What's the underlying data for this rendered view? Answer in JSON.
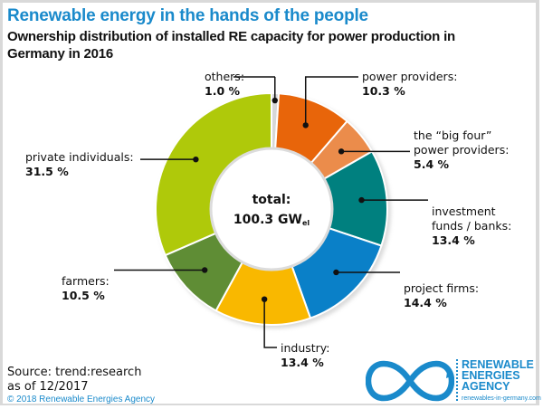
{
  "header": {
    "title": "Renewable energy in the hands of the people",
    "subtitle": "Ownership distribution of installed RE capacity for power production in Germany in 2016"
  },
  "chart_data": {
    "type": "pie",
    "variant": "donut",
    "title": "Renewable energy in the hands of the people",
    "subtitle": "Ownership distribution of installed RE capacity for power production in Germany in 2016",
    "unit": "%",
    "start": "12 o'clock",
    "direction": "clockwise",
    "center_label": {
      "line1": "total:",
      "value": "100.3 GW",
      "subscript": "el"
    },
    "slices": [
      {
        "key": "others",
        "label": "others:",
        "value": 1.0,
        "value_label": "1.0 %",
        "color": "#d7d7d7"
      },
      {
        "key": "power-providers",
        "label": "power providers:",
        "value": 10.3,
        "value_label": "10.3 %",
        "color": "#e8650a"
      },
      {
        "key": "big-four",
        "label": "the “big four” power providers:",
        "label_lines": [
          "the “big four”",
          "power providers:"
        ],
        "value": 5.4,
        "value_label": "5.4 %",
        "color": "#eb8c4b"
      },
      {
        "key": "investment-funds",
        "label": "investment funds / banks:",
        "label_lines": [
          "investment",
          "funds / banks:"
        ],
        "value": 13.4,
        "value_label": "13.4 %",
        "color": "#00807f"
      },
      {
        "key": "project-firms",
        "label": "project firms:",
        "value": 14.4,
        "value_label": "14.4 %",
        "color": "#0a80c8"
      },
      {
        "key": "industry",
        "label": "industry:",
        "value": 13.4,
        "value_label": "13.4 %",
        "color": "#f9b800"
      },
      {
        "key": "farmers",
        "label": "farmers:",
        "value": 10.5,
        "value_label": "10.5 %",
        "color": "#5f8d35"
      },
      {
        "key": "private-individuals",
        "label": "private individuals:",
        "value": 31.5,
        "value_label": "31.5 %",
        "color": "#afc90a"
      }
    ]
  },
  "footer": {
    "source_line1": "Source: trend:research",
    "source_line2": "as of 12/2017",
    "copyright": "© 2018 Renewable Energies Agency"
  },
  "logo": {
    "line1": "RENEWABLE",
    "line2": "ENERGIES",
    "line3": "AGENCY",
    "url": "renewables-in-germany.com",
    "color": "#1a8acb"
  }
}
